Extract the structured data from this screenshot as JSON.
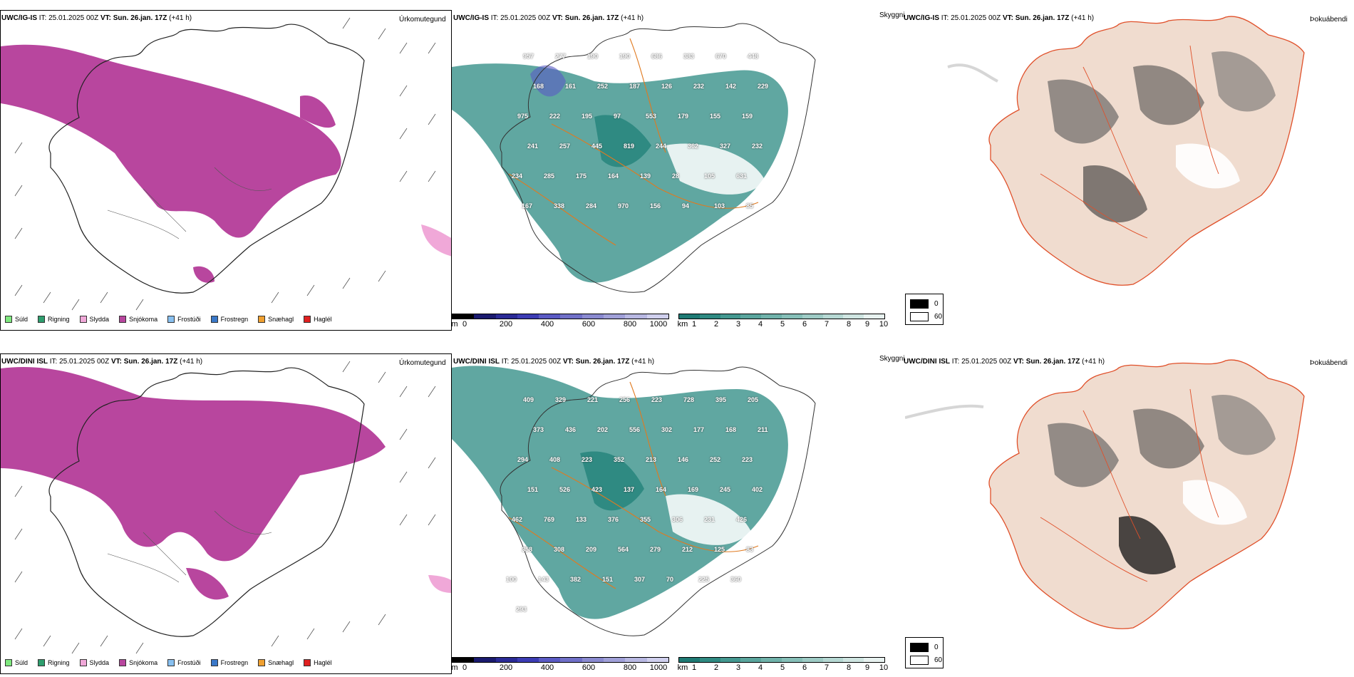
{
  "rows": [
    {
      "model": "UWC/IG-IS",
      "it_label": "IT:",
      "it": "25.01.2025 00Z",
      "vt_label": "VT:",
      "vt": "Sun. 26.jan. 17Z",
      "lead": "(+41 h)",
      "panel_titles": [
        "Úrkomutegund",
        "Skyggni",
        "Þokuábendi"
      ],
      "height_labels": [
        "957",
        "277",
        "190",
        "190",
        "686",
        "383",
        "670",
        "448",
        "168",
        "161",
        "252",
        "187",
        "126",
        "232",
        "142",
        "229",
        "975",
        "222",
        "195",
        "97",
        "553",
        "179",
        "155",
        "159",
        "241",
        "257",
        "445",
        "819",
        "244",
        "362",
        "327",
        "232",
        "234",
        "285",
        "175",
        "164",
        "139",
        "28",
        "105",
        "631",
        "167",
        "338",
        "284",
        "970",
        "156",
        "94",
        "103",
        "85"
      ]
    },
    {
      "model": "UWC/DINI ISL",
      "it_label": "IT:",
      "it": "25.01.2025 00Z",
      "vt_label": "VT:",
      "vt": "Sun. 26.jan. 17Z",
      "lead": "(+41 h)",
      "panel_titles": [
        "Úrkomutegund",
        "Skyggni",
        "Þokuábendi"
      ],
      "height_labels": [
        "409",
        "329",
        "221",
        "256",
        "223",
        "728",
        "395",
        "205",
        "373",
        "436",
        "202",
        "556",
        "302",
        "177",
        "168",
        "211",
        "294",
        "408",
        "223",
        "352",
        "213",
        "146",
        "252",
        "223",
        "151",
        "526",
        "423",
        "137",
        "164",
        "169",
        "245",
        "402",
        "462",
        "769",
        "133",
        "376",
        "355",
        "306",
        "231",
        "426",
        "358",
        "308",
        "209",
        "564",
        "279",
        "212",
        "125",
        "83",
        "100",
        "143",
        "382",
        "151",
        "307",
        "70",
        "225",
        "360",
        "293"
      ]
    }
  ],
  "precip_legend": [
    {
      "label": "Súld",
      "color": "#7ee87e"
    },
    {
      "label": "Rigning",
      "color": "#2e9e6e"
    },
    {
      "label": "Slydda",
      "color": "#f0a8d8"
    },
    {
      "label": "Snjókoma",
      "color": "#b8469e"
    },
    {
      "label": "Frostúði",
      "color": "#88c0f0"
    },
    {
      "label": "Frostregn",
      "color": "#3a78c8"
    },
    {
      "label": "Snæhagl",
      "color": "#f0a030"
    },
    {
      "label": "Haglél",
      "color": "#e02020"
    }
  ],
  "height_scale": {
    "unit": "m",
    "ticks": [
      "0",
      "200",
      "400",
      "600",
      "800",
      "1000"
    ],
    "colors": [
      "#000000",
      "#1a1a6e",
      "#2a2a96",
      "#3c3cb4",
      "#5a5ac4",
      "#7070c8",
      "#8a8ad0",
      "#a0a0d8",
      "#b8b8e2",
      "#d0d0ee"
    ]
  },
  "visibility_scale": {
    "unit": "km",
    "ticks": [
      "1",
      "2",
      "3",
      "4",
      "5",
      "6",
      "7",
      "8",
      "9",
      "10"
    ],
    "colors": [
      "#1e7a74",
      "#2f8a82",
      "#449890",
      "#5aa59d",
      "#70b2aa",
      "#86bfb8",
      "#9ecbc5",
      "#b6d8d3",
      "#cfe5e1",
      "#e8f2f0"
    ]
  },
  "fog_legend": [
    {
      "value": "0",
      "color": "#000000"
    },
    {
      "value": "60",
      "color": "#ffffff"
    }
  ]
}
